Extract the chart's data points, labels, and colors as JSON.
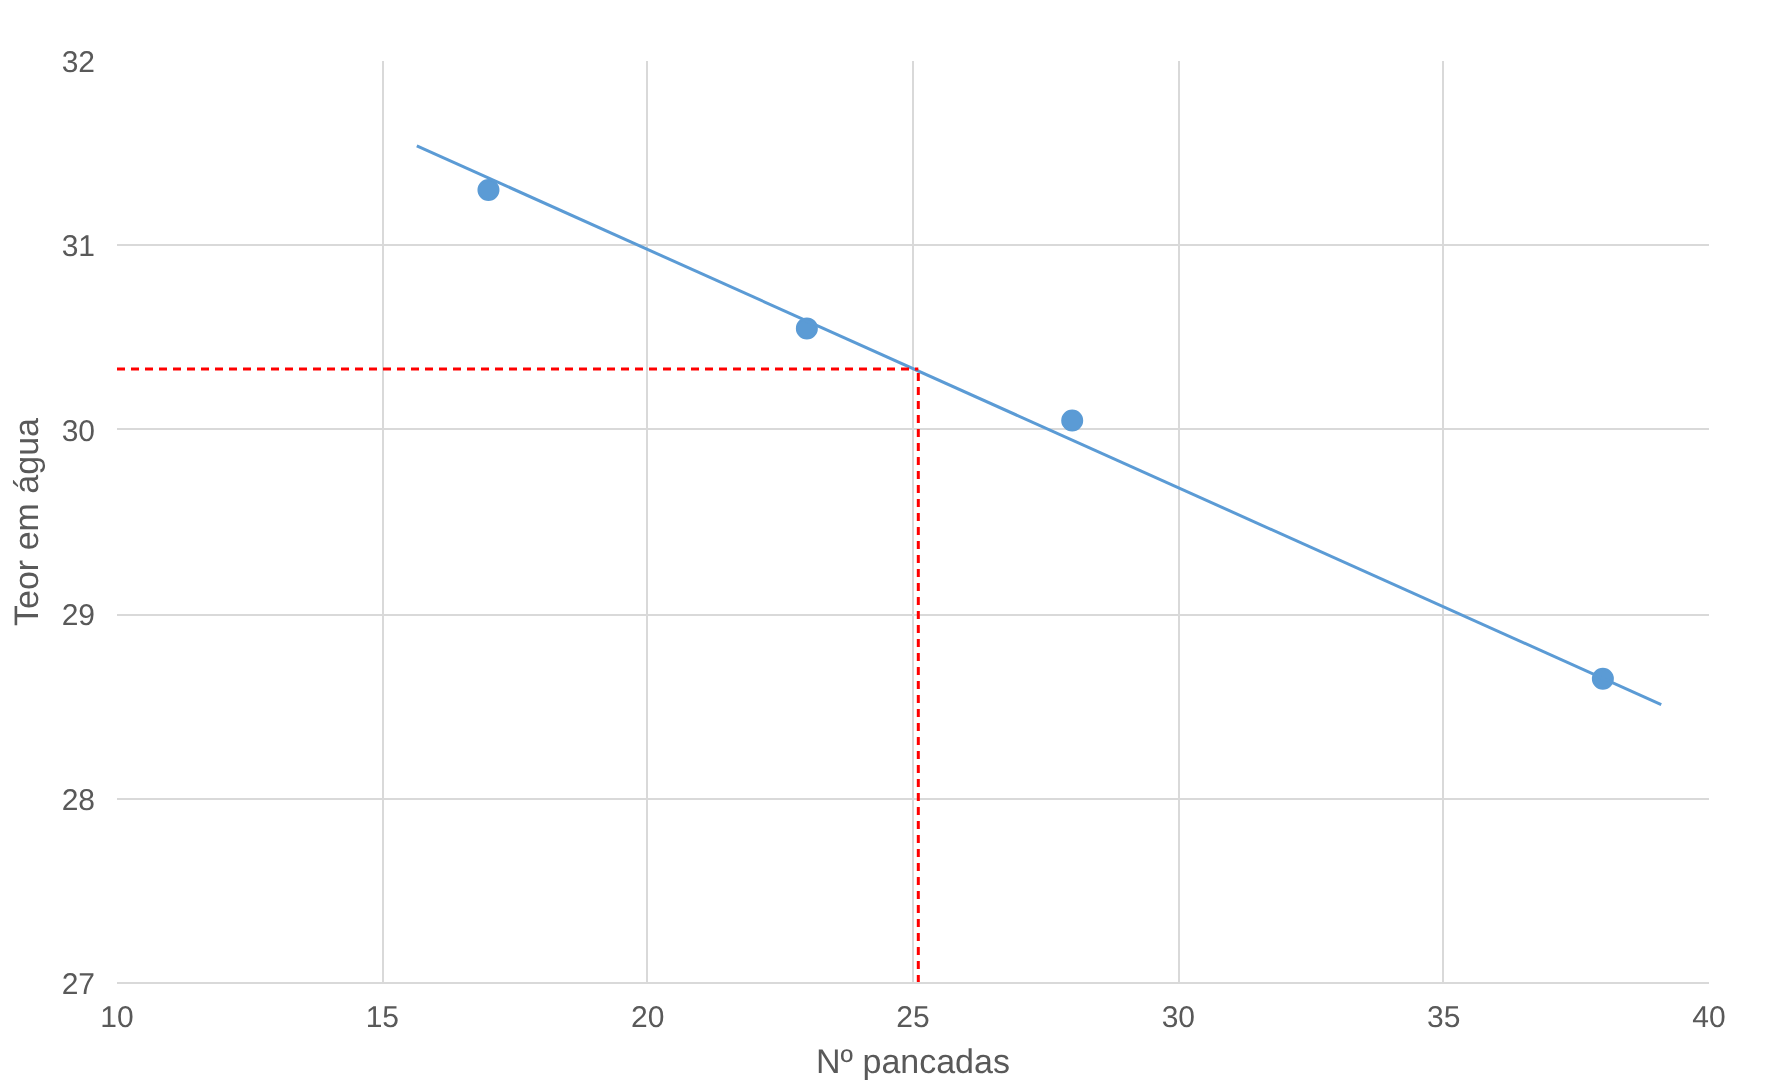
{
  "chart_data": {
    "type": "scatter",
    "xlabel": "Nº pancadas",
    "ylabel": "Teor em água",
    "xlim": [
      10,
      40
    ],
    "xticks": [
      10,
      15,
      20,
      25,
      30,
      35,
      40
    ],
    "ylim": [
      27,
      32
    ],
    "yticks": [
      27,
      28,
      29,
      30,
      31,
      32
    ],
    "grid": true,
    "series": [
      {
        "color": "#5b9bd5",
        "marker": "circle",
        "x": [
          17,
          23,
          28,
          38
        ],
        "values": [
          31.3,
          30.55,
          30.05,
          28.65
        ]
      },
      {
        "type": "line",
        "color": "#5b9bd5",
        "line_style": "solid",
        "marker": "none",
        "x": [
          15.65,
          39.1
        ],
        "values": [
          31.54,
          28.51
        ]
      },
      {
        "type": "line",
        "color": "#ff0000",
        "line_style": "dashed",
        "marker": "none",
        "x": [
          10,
          25.1
        ],
        "values": [
          30.33,
          30.33
        ]
      },
      {
        "type": "line",
        "color": "#ff0000",
        "line_style": "dashed",
        "marker": "none",
        "x": [
          25.1,
          25.1
        ],
        "values": [
          27,
          30.33
        ]
      }
    ]
  }
}
